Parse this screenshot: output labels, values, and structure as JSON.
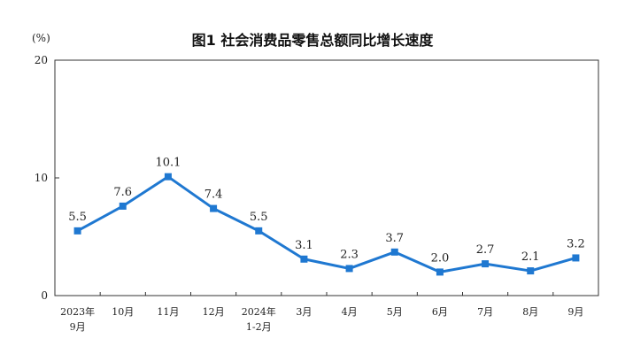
{
  "chart_data": {
    "type": "line",
    "title": "图1  社会消费品零售总额同比增长速度",
    "ylabel": "(%)",
    "xlabel": "",
    "ylim": [
      0,
      20
    ],
    "yticks": [
      "0",
      "10",
      "20"
    ],
    "grid": false,
    "line_color": "#1f78d1",
    "categories": [
      [
        "2023年",
        "9月"
      ],
      [
        "10月"
      ],
      [
        "11月"
      ],
      [
        "12月"
      ],
      [
        "2024年",
        "1-2月"
      ],
      [
        "3月"
      ],
      [
        "4月"
      ],
      [
        "5月"
      ],
      [
        "6月"
      ],
      [
        "7月"
      ],
      [
        "8月"
      ],
      [
        "9月"
      ]
    ],
    "values": [
      5.5,
      7.6,
      10.1,
      7.4,
      5.5,
      3.1,
      2.3,
      3.7,
      2.0,
      2.7,
      2.1,
      3.2
    ],
    "data_labels": [
      "5.5",
      "7.6",
      "10.1",
      "7.4",
      "5.5",
      "3.1",
      "2.3",
      "3.7",
      "2.0",
      "2.7",
      "2.1",
      "3.2"
    ]
  }
}
